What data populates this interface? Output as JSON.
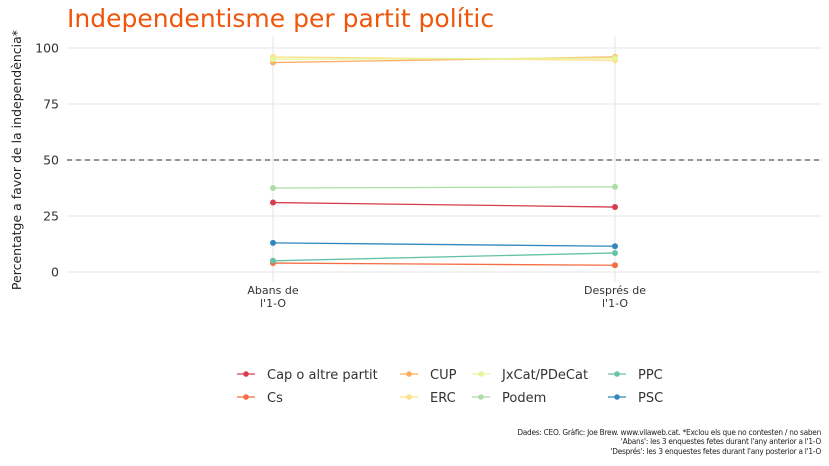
{
  "chart_data": {
    "type": "line",
    "title": "Independentisme per partit polític",
    "xlabel": "",
    "ylabel": "Percentatge a favor de la independència*",
    "categories": [
      "Abans de\nl'1-O",
      "Després de\nl'1-O"
    ],
    "ylim": [
      0,
      100
    ],
    "yticks": [
      0,
      25,
      50,
      75,
      100
    ],
    "reference_line": {
      "y": 50,
      "style": "dashed"
    },
    "grid": true,
    "legend_position": "bottom",
    "series": [
      {
        "name": "Cap o altre partit",
        "color": "#d53e4f",
        "values": [
          31,
          29
        ]
      },
      {
        "name": "Cs",
        "color": "#f46d43",
        "values": [
          4,
          3
        ]
      },
      {
        "name": "CUP",
        "color": "#fdae61",
        "values": [
          93.5,
          96
        ]
      },
      {
        "name": "ERC",
        "color": "#fee08b",
        "values": [
          96,
          94.5
        ]
      },
      {
        "name": "JxCat/PDeCat",
        "color": "#e6f598",
        "values": [
          95,
          95.5
        ]
      },
      {
        "name": "Podem",
        "color": "#abdda4",
        "values": [
          37.5,
          38
        ]
      },
      {
        "name": "PPC",
        "color": "#66c2a5",
        "values": [
          5,
          8.5
        ]
      },
      {
        "name": "PSC",
        "color": "#3288bd",
        "values": [
          13,
          11.5
        ]
      }
    ]
  },
  "caption": {
    "line1": "Dades: CEO. Gràfic: Joe Brew. www.vilaweb.cat. *Exclou els que no contesten / no saben",
    "line2": "'Abans': les 3 enquestes fetes durant l'any anterior a l'1-O",
    "line3": "'Després': les 3 enquestes fetes durant l'any posterior a l'1-O"
  }
}
